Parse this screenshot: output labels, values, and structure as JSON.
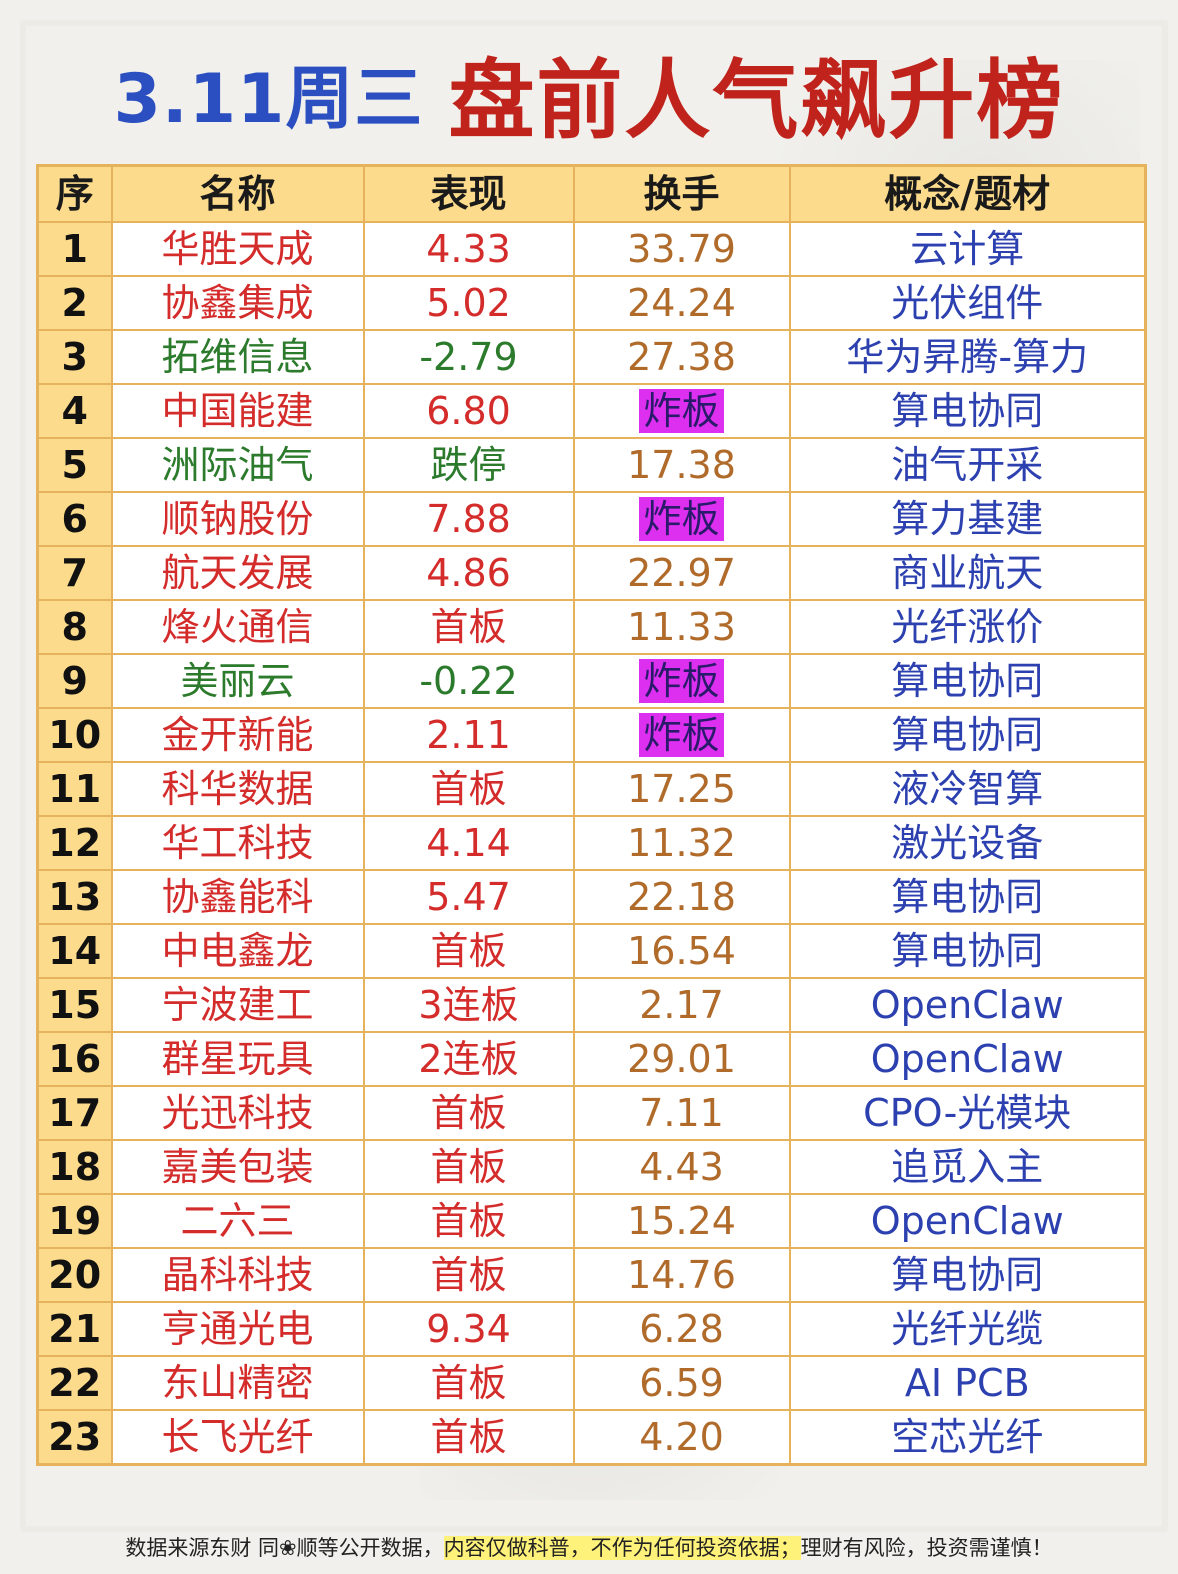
{
  "title": {
    "date": "3.11周三",
    "main": "盘前人气飙升榜"
  },
  "table": {
    "headers": [
      "序",
      "名称",
      "表现",
      "换手",
      "概念/题材"
    ],
    "rows": [
      {
        "seq": "1",
        "name": "华胜天成",
        "perf": "4.33",
        "turnover": "33.79",
        "concept": "云计算"
      },
      {
        "seq": "2",
        "name": "协鑫集成",
        "perf": "5.02",
        "turnover": "24.24",
        "concept": "光伏组件"
      },
      {
        "seq": "3",
        "name": "拓维信息",
        "perf": "-2.79",
        "turnover": "27.38",
        "concept": "华为昇腾-算力"
      },
      {
        "seq": "4",
        "name": "中国能建",
        "perf": "6.80",
        "turnover": "炸板",
        "concept": "算电协同"
      },
      {
        "seq": "5",
        "name": "洲际油气",
        "perf": "跌停",
        "turnover": "17.38",
        "concept": "油气开采"
      },
      {
        "seq": "6",
        "name": "顺钠股份",
        "perf": "7.88",
        "turnover": "炸板",
        "concept": "算力基建"
      },
      {
        "seq": "7",
        "name": "航天发展",
        "perf": "4.86",
        "turnover": "22.97",
        "concept": "商业航天"
      },
      {
        "seq": "8",
        "name": "烽火通信",
        "perf": "首板",
        "turnover": "11.33",
        "concept": "光纤涨价"
      },
      {
        "seq": "9",
        "name": "美丽云",
        "perf": "-0.22",
        "turnover": "炸板",
        "concept": "算电协同"
      },
      {
        "seq": "10",
        "name": "金开新能",
        "perf": "2.11",
        "turnover": "炸板",
        "concept": "算电协同"
      },
      {
        "seq": "11",
        "name": "科华数据",
        "perf": "首板",
        "turnover": "17.25",
        "concept": "液冷智算"
      },
      {
        "seq": "12",
        "name": "华工科技",
        "perf": "4.14",
        "turnover": "11.32",
        "concept": "激光设备"
      },
      {
        "seq": "13",
        "name": "协鑫能科",
        "perf": "5.47",
        "turnover": "22.18",
        "concept": "算电协同"
      },
      {
        "seq": "14",
        "name": "中电鑫龙",
        "perf": "首板",
        "turnover": "16.54",
        "concept": "算电协同"
      },
      {
        "seq": "15",
        "name": "宁波建工",
        "perf": "3连板",
        "turnover": "2.17",
        "concept": "OpenClaw"
      },
      {
        "seq": "16",
        "name": "群星玩具",
        "perf": "2连板",
        "turnover": "29.01",
        "concept": "OpenClaw"
      },
      {
        "seq": "17",
        "name": "光迅科技",
        "perf": "首板",
        "turnover": "7.11",
        "concept": "CPO-光模块"
      },
      {
        "seq": "18",
        "name": "嘉美包装",
        "perf": "首板",
        "turnover": "4.43",
        "concept": "追觅入主"
      },
      {
        "seq": "19",
        "name": "二六三",
        "perf": "首板",
        "turnover": "15.24",
        "concept": "OpenClaw"
      },
      {
        "seq": "20",
        "name": "晶科科技",
        "perf": "首板",
        "turnover": "14.76",
        "concept": "算电协同"
      },
      {
        "seq": "21",
        "name": "亨通光电",
        "perf": "9.34",
        "turnover": "6.28",
        "concept": "光纤光缆"
      },
      {
        "seq": "22",
        "name": "东山精密",
        "perf": "首板",
        "turnover": "6.59",
        "concept": "AI PCB"
      },
      {
        "seq": "23",
        "name": "长飞光纤",
        "perf": "首板",
        "turnover": "4.20",
        "concept": "空芯光纤"
      }
    ]
  },
  "footer": {
    "left": "数据来源东财 同❀顺等公开数据，",
    "highlight": "内容仅做科普，不作为任何投资依据；",
    "right": "理财有风险，投资需谨慎！"
  },
  "colors": {
    "title_date": "#2b4fc0",
    "title_main": "#c0231b",
    "header_bg": "#fcdc8c",
    "grid": "#e6b35c",
    "up": "#d42b2b",
    "down": "#2c7a2c",
    "turnover": "#b06a2a",
    "concept": "#2c40b0",
    "broken_board_bg": "#dd2ff0",
    "footer_highlight": "#fff27a"
  }
}
